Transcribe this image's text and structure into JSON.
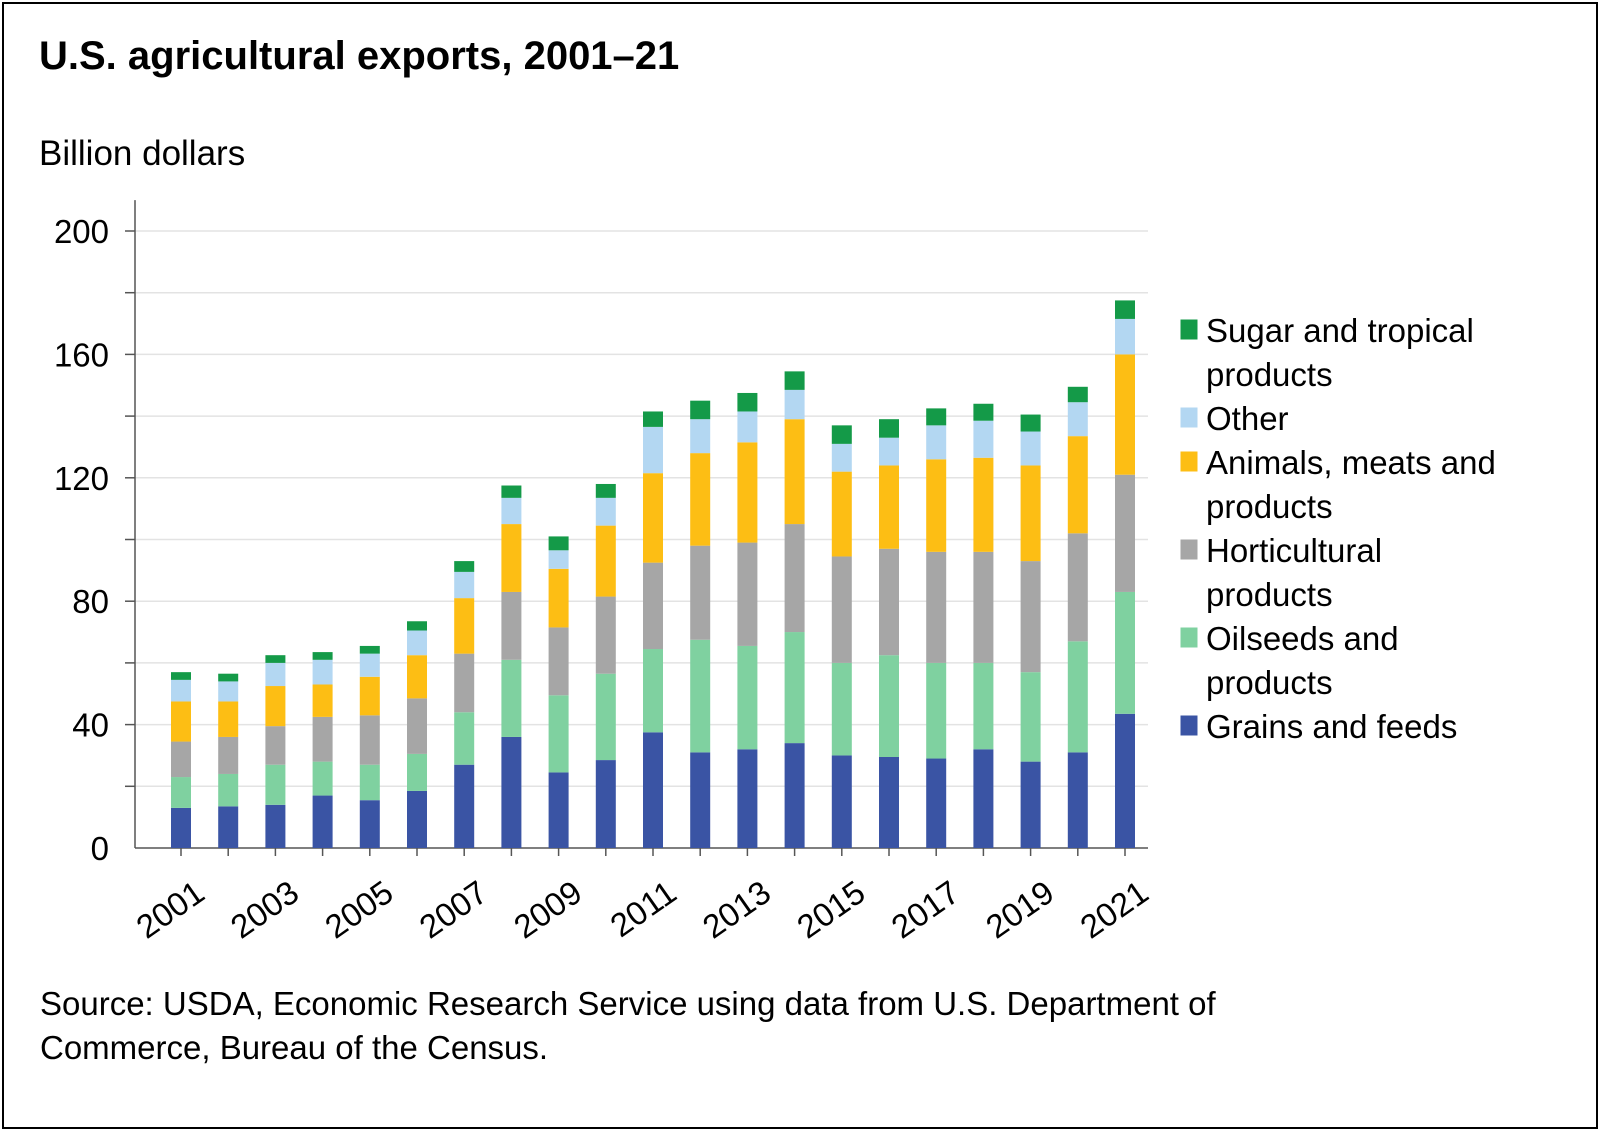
{
  "chart_data": {
    "type": "bar",
    "stacked": true,
    "title": "U.S. agricultural exports, 2001–21",
    "ylabel": "Billion dollars",
    "xlabel": "",
    "ylim": [
      0,
      210
    ],
    "yticks": [
      0,
      40,
      80,
      120,
      160,
      200
    ],
    "categories": [
      "2001",
      "2002",
      "2003",
      "2004",
      "2005",
      "2006",
      "2007",
      "2008",
      "2009",
      "2010",
      "2011",
      "2012",
      "2013",
      "2014",
      "2015",
      "2016",
      "2017",
      "2018",
      "2019",
      "2020",
      "2021"
    ],
    "xtick_labels": [
      "2001",
      "",
      "2003",
      "",
      "2005",
      "",
      "2007",
      "",
      "2009",
      "",
      "2011",
      "",
      "2013",
      "",
      "2015",
      "",
      "2017",
      "",
      "2019",
      "",
      "2021"
    ],
    "series": [
      {
        "name": "Grains and feeds",
        "color": "#3a54a4",
        "values": [
          13,
          13.5,
          14,
          17,
          15.5,
          18.5,
          27,
          36,
          24.5,
          28.5,
          37.5,
          31,
          32,
          34,
          30,
          29.5,
          29,
          32,
          28,
          31,
          43.5
        ]
      },
      {
        "name": "Oilseeds and products",
        "color": "#7fd1a0",
        "values": [
          10,
          10.5,
          13,
          11,
          11.5,
          12,
          17,
          25,
          25,
          28,
          27,
          36.5,
          33.5,
          36,
          30,
          33,
          31,
          28,
          29,
          36,
          39.5
        ]
      },
      {
        "name": "Horticultural products",
        "color": "#a6a6a6",
        "values": [
          11.5,
          12,
          12.5,
          14.5,
          16,
          18,
          19,
          22,
          22,
          25,
          28,
          30.5,
          33.5,
          35,
          34.5,
          34.5,
          36,
          36,
          36,
          35,
          38
        ]
      },
      {
        "name": "Animals, meats and products",
        "color": "#fdbe14",
        "values": [
          13,
          11.5,
          13,
          10.5,
          12.5,
          14,
          18,
          22,
          19,
          23,
          29,
          30,
          32.5,
          34,
          27.5,
          27,
          30,
          30.5,
          31,
          31.5,
          39
        ]
      },
      {
        "name": "Other",
        "color": "#b3d7f2",
        "values": [
          7,
          6.5,
          7.5,
          8,
          7.5,
          8,
          8.5,
          8.5,
          6,
          9,
          15,
          11,
          10,
          9.5,
          9,
          9,
          11,
          12,
          11,
          11,
          11.5
        ]
      },
      {
        "name": "Sugar and tropical products",
        "color": "#149a48",
        "values": [
          2.5,
          2.5,
          2.5,
          2.5,
          2.5,
          3,
          3.5,
          4,
          4.5,
          4.5,
          5,
          6,
          6,
          6,
          6,
          6,
          5.5,
          5.5,
          5.5,
          5,
          6
        ]
      }
    ],
    "legend": {
      "placement": "right",
      "entries": [
        {
          "series": "Sugar and tropical products",
          "lines": [
            "Sugar and tropical",
            "products"
          ]
        },
        {
          "series": "Other",
          "lines": [
            "Other"
          ]
        },
        {
          "series": "Animals, meats and products",
          "lines": [
            "Animals, meats and",
            "products"
          ]
        },
        {
          "series": "Horticultural products",
          "lines": [
            "Horticultural",
            "products"
          ]
        },
        {
          "series": "Oilseeds and products",
          "lines": [
            "Oilseeds and",
            "products"
          ]
        },
        {
          "series": "Grains and feeds",
          "lines": [
            "Grains and feeds"
          ]
        }
      ]
    },
    "grid": true
  },
  "source": {
    "line1": "Source: USDA, Economic Research Service using data from U.S. Department of",
    "line2": "Commerce, Bureau of the Census."
  }
}
